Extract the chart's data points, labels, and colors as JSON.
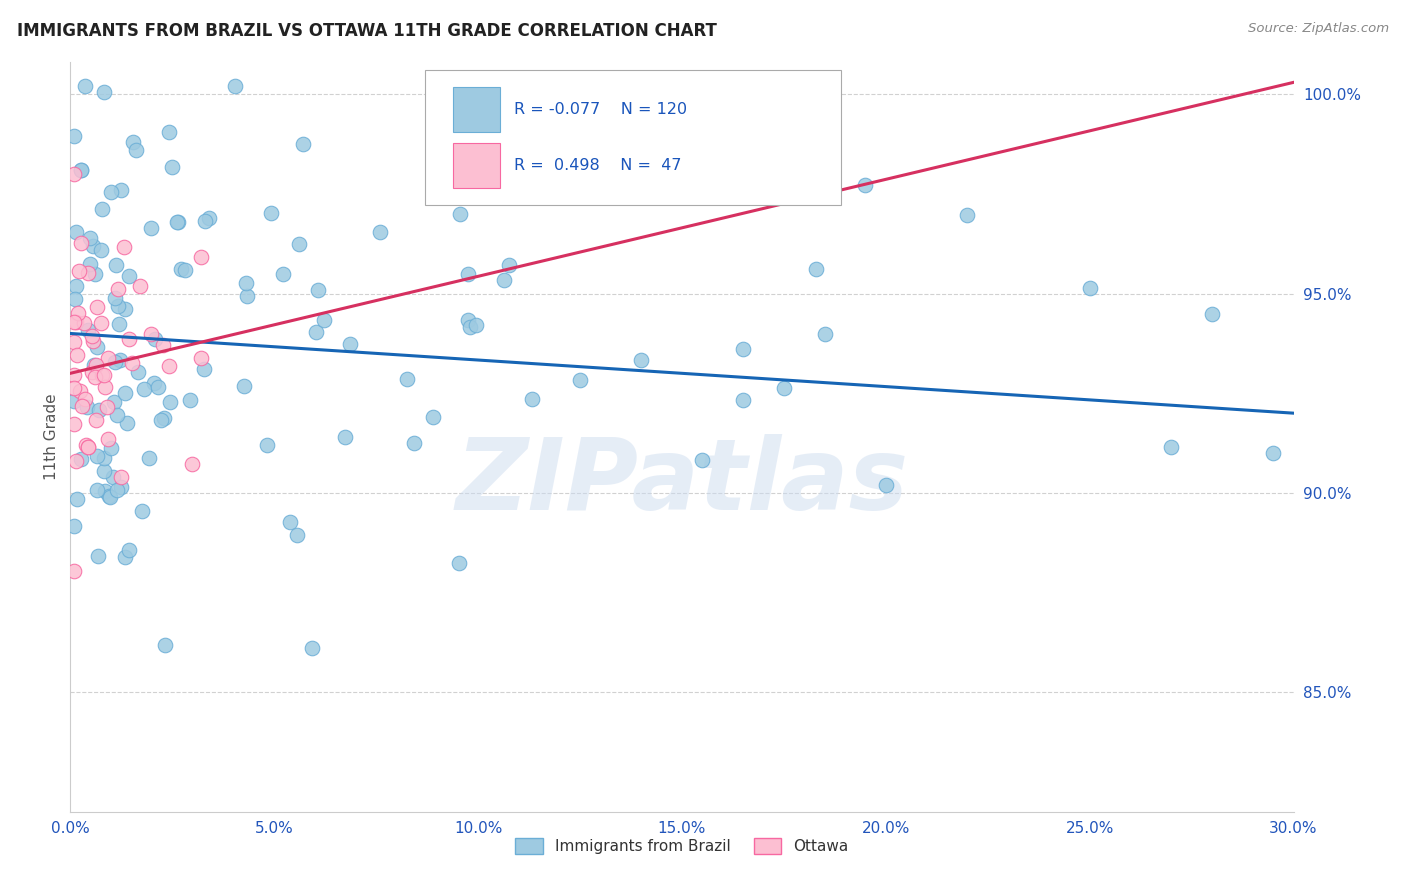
{
  "title": "IMMIGRANTS FROM BRAZIL VS OTTAWA 11TH GRADE CORRELATION CHART",
  "source": "Source: ZipAtlas.com",
  "ylabel": "11th Grade",
  "x_min": 0.0,
  "x_max": 0.3,
  "y_min": 0.82,
  "y_max": 1.008,
  "x_tick_labels": [
    "0.0%",
    "5.0%",
    "10.0%",
    "15.0%",
    "20.0%",
    "25.0%",
    "30.0%"
  ],
  "x_tick_vals": [
    0.0,
    0.05,
    0.1,
    0.15,
    0.2,
    0.25,
    0.3
  ],
  "y_tick_labels": [
    "85.0%",
    "90.0%",
    "95.0%",
    "100.0%"
  ],
  "y_tick_vals": [
    0.85,
    0.9,
    0.95,
    1.0
  ],
  "blue_color": "#9ecae1",
  "pink_color": "#fcbfd2",
  "blue_edge": "#6baed6",
  "pink_edge": "#f768a1",
  "trend_blue": "#1665b5",
  "trend_pink": "#d63060",
  "legend_R_blue": "-0.077",
  "legend_N_blue": "120",
  "legend_R_pink": "0.498",
  "legend_N_pink": "47",
  "label_blue": "Immigrants from Brazil",
  "label_pink": "Ottawa",
  "watermark": "ZIPatlas",
  "blue_trend_x0": 0.0,
  "blue_trend_x1": 0.3,
  "blue_trend_y0": 0.94,
  "blue_trend_y1": 0.92,
  "pink_trend_x0": 0.0,
  "pink_trend_x1": 0.3,
  "pink_trend_y0": 0.93,
  "pink_trend_y1": 1.003
}
